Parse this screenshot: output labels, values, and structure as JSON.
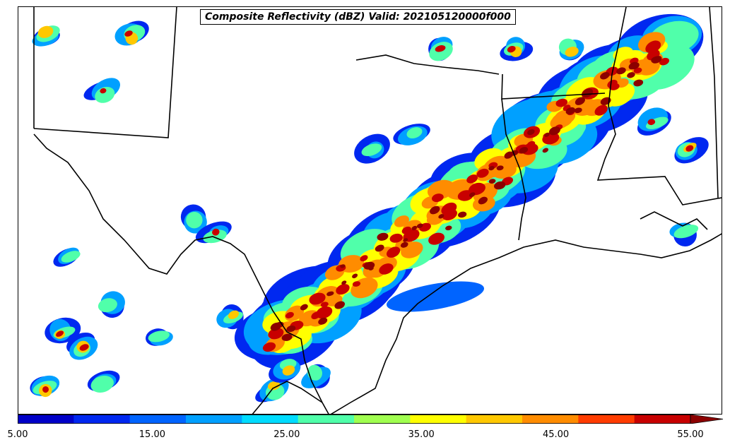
{
  "title": "Composite Reflectivity (dBZ) Valid: 202105120000f000",
  "colorbar": {
    "min": 5.0,
    "max": 55.0,
    "extend": "max",
    "step": 5.0,
    "colors": [
      "#0000c8",
      "#0028f0",
      "#0064ff",
      "#00a0ff",
      "#00dcff",
      "#50ffaa",
      "#a0ff50",
      "#ffff00",
      "#ffc800",
      "#ff8c00",
      "#ff3c00",
      "#c80000",
      "#8c0000"
    ],
    "ticks": [
      "5.00",
      "15.00",
      "25.00",
      "35.00",
      "45.00",
      "55.00"
    ]
  },
  "map": {
    "field": "composite reflectivity",
    "boundaries": [
      "state-lines",
      "coastline",
      "international-border"
    ]
  }
}
